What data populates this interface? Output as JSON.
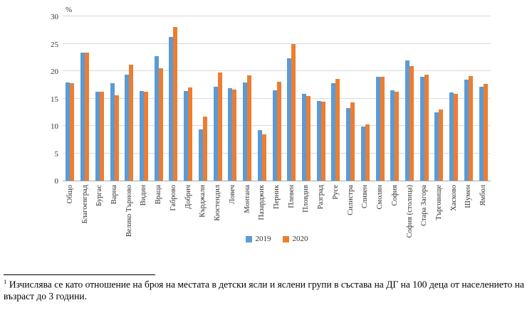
{
  "chart_data": {
    "type": "bar",
    "title": "",
    "xlabel": "",
    "ylabel": "%",
    "ylim": [
      0,
      30
    ],
    "ytick_step": 5,
    "grid": true,
    "legend_position": "bottom",
    "categories": [
      "Общо",
      "Благоевград",
      "Бургас",
      "Варна",
      "Велико Търново",
      "Видин",
      "Враца",
      "Габрово",
      "Добрич",
      "Кърджали",
      "Кюстендил",
      "Ловеч",
      "Монтана",
      "Пазарджик",
      "Перник",
      "Плевен",
      "Пловдив",
      "Разград",
      "Русе",
      "Силистра",
      "Сливен",
      "Смолян",
      "София",
      "София (столица)",
      "Стара Загора",
      "Търговище",
      "Хасково",
      "Шумен",
      "Ямбол"
    ],
    "series": [
      {
        "name": "2019",
        "color": "#5B9BD5",
        "values": [
          17.9,
          23.4,
          16.3,
          17.8,
          19.4,
          16.4,
          22.7,
          26.3,
          16.4,
          9.4,
          17.2,
          16.9,
          17.9,
          9.2,
          16.5,
          22.4,
          15.8,
          14.6,
          17.8,
          13.3,
          9.9,
          19.0,
          16.5,
          22.0,
          19.0,
          12.5,
          16.1,
          18.4,
          17.2
        ]
      },
      {
        "name": "2020",
        "color": "#ED7D31",
        "values": [
          17.8,
          23.4,
          16.2,
          15.6,
          21.2,
          16.2,
          20.5,
          28.0,
          17.0,
          11.7,
          19.8,
          16.6,
          19.2,
          8.5,
          18.0,
          24.9,
          15.4,
          14.4,
          18.6,
          14.3,
          10.2,
          18.9,
          16.3,
          20.9,
          19.3,
          13.0,
          15.9,
          19.1,
          17.6
        ]
      }
    ]
  },
  "footnote": {
    "marker": "1",
    "text": "Изчислява се като отношение на броя на местата в детски ясли и яслени групи в състава на ДГ на 100 деца от населението на възраст до 3 години."
  }
}
